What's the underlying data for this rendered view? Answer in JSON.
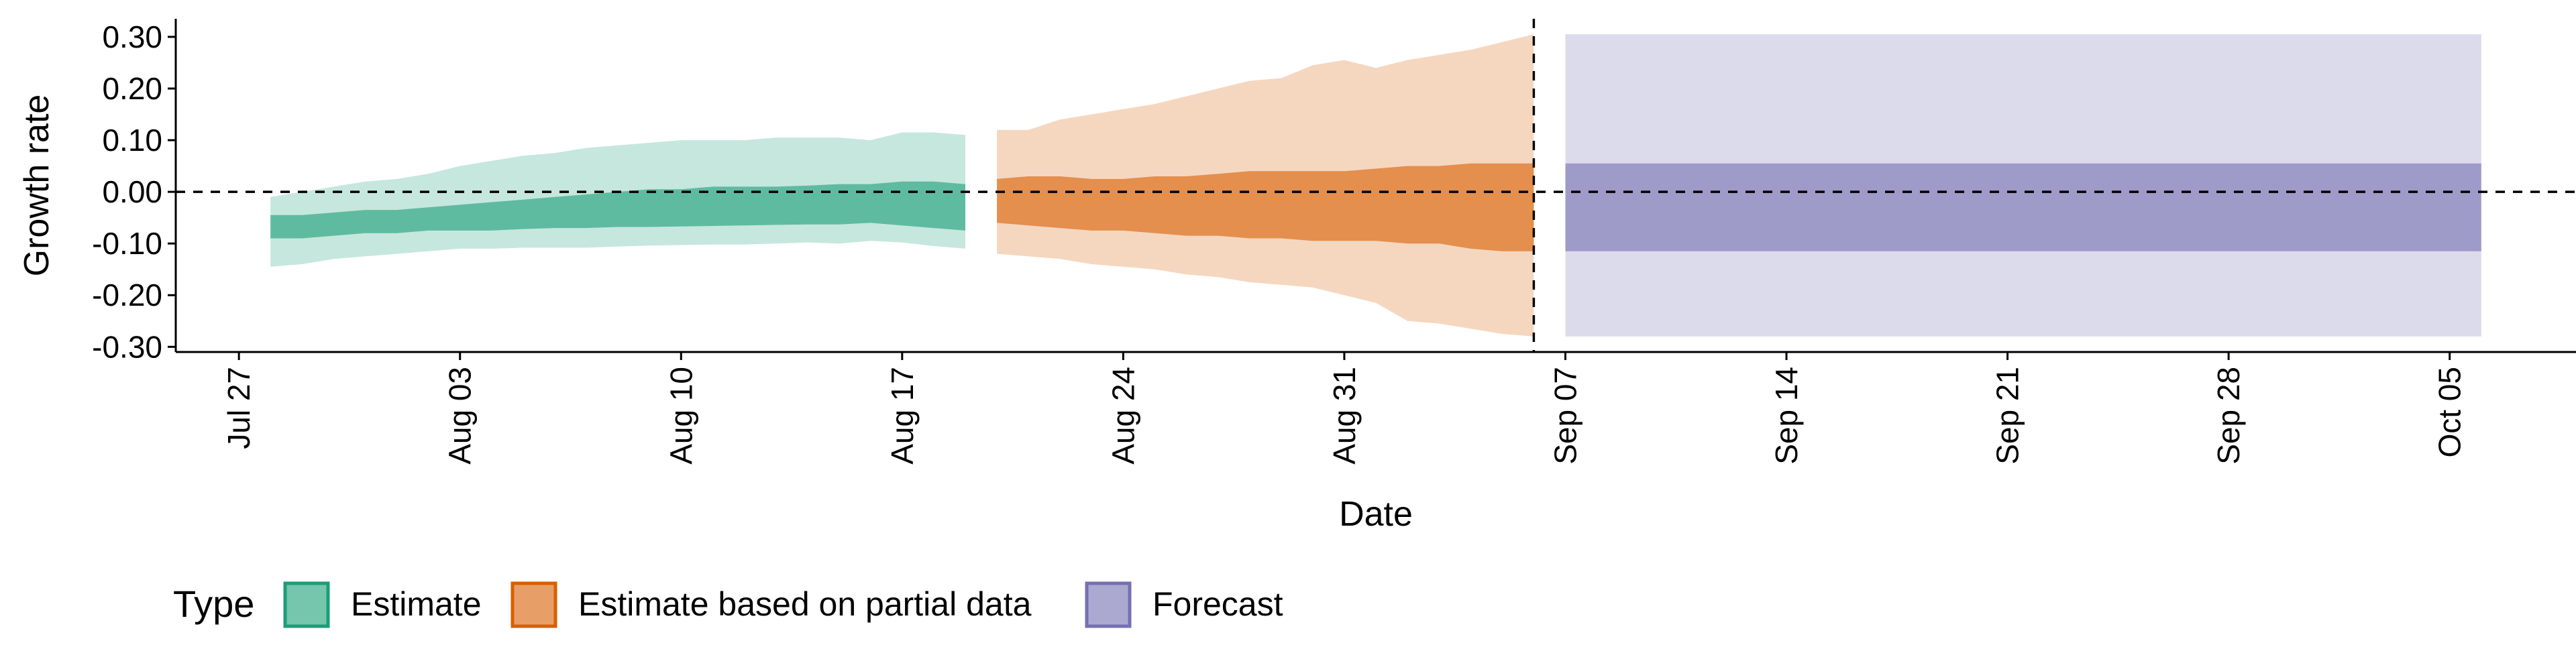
{
  "chart_data": {
    "type": "area",
    "xlabel": "Date",
    "ylabel": "Growth rate",
    "x_tick_labels": [
      {
        "date": "2020-07-27",
        "label": "Jul 27"
      },
      {
        "date": "2020-08-03",
        "label": "Aug 03"
      },
      {
        "date": "2020-08-10",
        "label": "Aug 10"
      },
      {
        "date": "2020-08-17",
        "label": "Aug 17"
      },
      {
        "date": "2020-08-24",
        "label": "Aug 24"
      },
      {
        "date": "2020-08-31",
        "label": "Aug 31"
      },
      {
        "date": "2020-09-07",
        "label": "Sep 07"
      },
      {
        "date": "2020-09-14",
        "label": "Sep 14"
      },
      {
        "date": "2020-09-21",
        "label": "Sep 21"
      },
      {
        "date": "2020-09-28",
        "label": "Sep 28"
      },
      {
        "date": "2020-10-05",
        "label": "Oct 05"
      }
    ],
    "xlim": [
      "2020-07-25",
      "2020-10-09"
    ],
    "y_ticks": [
      -0.3,
      -0.2,
      -0.1,
      0.0,
      0.1,
      0.2,
      0.3
    ],
    "y_tick_labels": [
      "-0.30",
      "-0.20",
      "-0.10",
      "0.00",
      "0.10",
      "0.20",
      "0.30"
    ],
    "ylim": [
      -0.31,
      0.335
    ],
    "grid": false,
    "reference_lines": [
      {
        "orientation": "horizontal",
        "value": 0.0,
        "style": "dashed"
      },
      {
        "orientation": "vertical",
        "value": "2020-09-06",
        "style": "dashed"
      }
    ],
    "legend": {
      "title": "Type",
      "position": "bottom-left",
      "items": [
        {
          "label": "Estimate",
          "color": "#1b9e77"
        },
        {
          "label": "Estimate based on partial data",
          "color": "#d95f02"
        },
        {
          "label": "Forecast",
          "color": "#7570b3"
        }
      ]
    },
    "series": [
      {
        "name": "Estimate",
        "color": "#1b9e77",
        "x": [
          "2020-07-28",
          "2020-07-29",
          "2020-07-30",
          "2020-07-31",
          "2020-08-01",
          "2020-08-02",
          "2020-08-03",
          "2020-08-04",
          "2020-08-05",
          "2020-08-06",
          "2020-08-07",
          "2020-08-08",
          "2020-08-09",
          "2020-08-10",
          "2020-08-11",
          "2020-08-12",
          "2020-08-13",
          "2020-08-14",
          "2020-08-15",
          "2020-08-16",
          "2020-08-17",
          "2020-08-18",
          "2020-08-19"
        ],
        "lower_90": [
          -0.145,
          -0.14,
          -0.13,
          -0.125,
          -0.12,
          -0.115,
          -0.11,
          -0.11,
          -0.108,
          -0.108,
          -0.108,
          -0.106,
          -0.104,
          -0.103,
          -0.102,
          -0.102,
          -0.1,
          -0.098,
          -0.1,
          -0.095,
          -0.098,
          -0.105,
          -0.11
        ],
        "upper_90": [
          -0.01,
          0.0,
          0.01,
          0.02,
          0.025,
          0.035,
          0.05,
          0.06,
          0.07,
          0.075,
          0.085,
          0.09,
          0.095,
          0.1,
          0.1,
          0.1,
          0.105,
          0.105,
          0.105,
          0.1,
          0.115,
          0.115,
          0.11
        ],
        "lower_50": [
          -0.09,
          -0.09,
          -0.085,
          -0.08,
          -0.08,
          -0.075,
          -0.075,
          -0.075,
          -0.072,
          -0.07,
          -0.07,
          -0.068,
          -0.068,
          -0.067,
          -0.066,
          -0.065,
          -0.064,
          -0.063,
          -0.063,
          -0.06,
          -0.065,
          -0.07,
          -0.075
        ],
        "upper_50": [
          -0.045,
          -0.045,
          -0.04,
          -0.035,
          -0.035,
          -0.03,
          -0.025,
          -0.02,
          -0.015,
          -0.01,
          -0.005,
          0.0,
          0.005,
          0.005,
          0.01,
          0.01,
          0.01,
          0.012,
          0.015,
          0.015,
          0.02,
          0.02,
          0.015
        ]
      },
      {
        "name": "Estimate based on partial data",
        "color": "#d95f02",
        "x": [
          "2020-08-20",
          "2020-08-21",
          "2020-08-22",
          "2020-08-23",
          "2020-08-24",
          "2020-08-25",
          "2020-08-26",
          "2020-08-27",
          "2020-08-28",
          "2020-08-29",
          "2020-08-30",
          "2020-08-31",
          "2020-09-01",
          "2020-09-02",
          "2020-09-03",
          "2020-09-04",
          "2020-09-05",
          "2020-09-06"
        ],
        "lower_90": [
          -0.12,
          -0.125,
          -0.13,
          -0.14,
          -0.145,
          -0.15,
          -0.16,
          -0.165,
          -0.175,
          -0.18,
          -0.185,
          -0.2,
          -0.215,
          -0.25,
          -0.255,
          -0.265,
          -0.275,
          -0.28
        ],
        "upper_90": [
          0.12,
          0.12,
          0.14,
          0.15,
          0.16,
          0.17,
          0.185,
          0.2,
          0.215,
          0.22,
          0.245,
          0.255,
          0.24,
          0.255,
          0.265,
          0.275,
          0.29,
          0.305
        ],
        "lower_50": [
          -0.06,
          -0.065,
          -0.07,
          -0.075,
          -0.075,
          -0.08,
          -0.085,
          -0.085,
          -0.09,
          -0.09,
          -0.095,
          -0.095,
          -0.095,
          -0.1,
          -0.1,
          -0.11,
          -0.115,
          -0.115
        ],
        "upper_50": [
          0.025,
          0.03,
          0.03,
          0.025,
          0.025,
          0.03,
          0.03,
          0.035,
          0.04,
          0.04,
          0.04,
          0.04,
          0.045,
          0.05,
          0.05,
          0.055,
          0.055,
          0.055
        ]
      },
      {
        "name": "Forecast",
        "color": "#7570b3",
        "x": [
          "2020-09-07",
          "2020-10-06"
        ],
        "lower_90": [
          -0.28,
          -0.28
        ],
        "upper_90": [
          0.305,
          0.305
        ],
        "lower_50": [
          -0.115,
          -0.115
        ],
        "upper_50": [
          0.055,
          0.055
        ]
      }
    ]
  }
}
